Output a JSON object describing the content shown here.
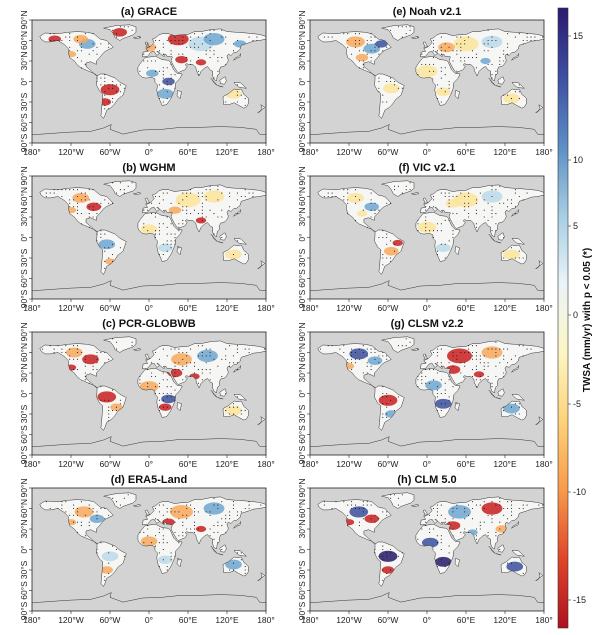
{
  "figure": {
    "panels": [
      {
        "id": "a",
        "title": "(a) GRACE",
        "pattern": "grace"
      },
      {
        "id": "e",
        "title": "(e) Noah v2.1",
        "pattern": "noah"
      },
      {
        "id": "b",
        "title": "(b) WGHM",
        "pattern": "wghm"
      },
      {
        "id": "f",
        "title": "(f) VIC v2.1",
        "pattern": "vic"
      },
      {
        "id": "c",
        "title": "(c) PCR-GLOBWB",
        "pattern": "pcr"
      },
      {
        "id": "g",
        "title": "(g) CLSM v2.2",
        "pattern": "clsm"
      },
      {
        "id": "d",
        "title": "(d) ERA5-Land",
        "pattern": "era5"
      },
      {
        "id": "h",
        "title": "(h) CLM 5.0",
        "pattern": "clm"
      }
    ],
    "lon_ticks": [
      "180°",
      "120°W",
      "60°W",
      "0°",
      "60°E",
      "120°E",
      "180°"
    ],
    "lat_ticks": [
      "90°N",
      "60°N",
      "30°N",
      "0°",
      "30°S",
      "60°S",
      "90°S"
    ],
    "colorbar": {
      "label": "TWSA (mm/yr) with p < 0.05 (*)",
      "ticks": [
        "15",
        "10",
        "5",
        "0",
        "-5",
        "-10",
        "-15"
      ],
      "range": [
        -15,
        15
      ],
      "colors_top_to_bottom": [
        "#2b1a6e",
        "#3d4fa3",
        "#5b8ec4",
        "#a5cde3",
        "#eaf4f8",
        "#fdf6c4",
        "#fdd27a",
        "#f89a4a",
        "#e0442a",
        "#b0101f"
      ]
    },
    "ocean_color": "#d3d3d3"
  }
}
